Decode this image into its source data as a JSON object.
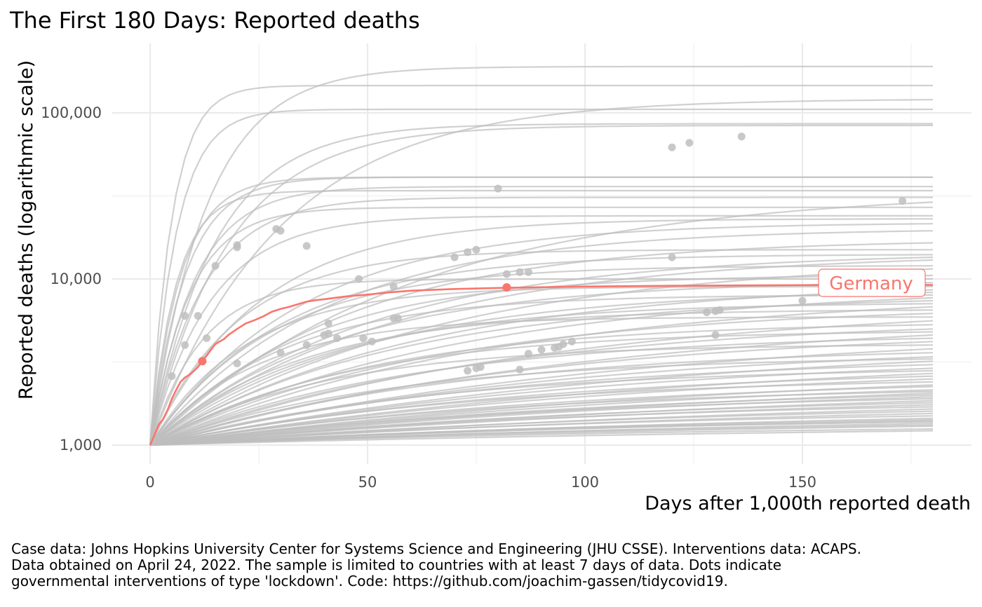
{
  "chart_data": {
    "type": "line",
    "title": "The First 180 Days: Reported deaths",
    "xlabel": "Days after 1,000th reported death",
    "ylabel": "Reported deaths (logarithmic scale)",
    "x_ticks": [
      "0",
      "50",
      "100",
      "150"
    ],
    "y_ticks": [
      "1,000",
      "10,000",
      "100,000"
    ],
    "xlim": [
      0,
      180
    ],
    "ylim": [
      1000,
      200000
    ],
    "y_scale": "log10",
    "grid": true,
    "legend": "none",
    "highlight_color": "#F8766D",
    "background_series_color": "#BEBEBE",
    "highlighted_series": {
      "name": "Germany",
      "x": [
        0,
        1,
        2,
        3,
        4,
        5,
        6,
        7,
        8,
        9,
        10,
        11,
        12,
        13,
        14,
        15,
        16,
        17,
        18,
        20,
        22,
        24,
        26,
        28,
        30,
        32,
        34,
        36,
        38,
        40,
        45,
        50,
        55,
        60,
        70,
        82,
        100,
        120,
        140,
        160,
        180
      ],
      "values": [
        1000,
        1150,
        1330,
        1430,
        1620,
        1900,
        2150,
        2400,
        2550,
        2650,
        2780,
        2950,
        3200,
        3450,
        3750,
        4050,
        4200,
        4350,
        4600,
        5000,
        5400,
        5650,
        5950,
        6350,
        6600,
        6800,
        7050,
        7300,
        7450,
        7550,
        7850,
        8050,
        8300,
        8500,
        8700,
        8850,
        9000,
        9100,
        9150,
        9200,
        9200
      ],
      "lockdown_points": [
        [
          12,
          3200
        ],
        [
          82,
          8900
        ]
      ]
    },
    "other_series": [
      {
        "end": 190000,
        "rate": 13
      },
      {
        "end": 146000,
        "rate": 5
      },
      {
        "end": 120000,
        "rate": 30
      },
      {
        "end": 105000,
        "rate": 6
      },
      {
        "end": 86000,
        "rate": 15
      },
      {
        "end": 84000,
        "rate": 18
      },
      {
        "end": 41000,
        "rate": 8
      },
      {
        "end": 41000,
        "rate": 7
      },
      {
        "end": 36000,
        "rate": 10
      },
      {
        "end": 34000,
        "rate": 6
      },
      {
        "end": 31000,
        "rate": 12
      },
      {
        "end": 29000,
        "rate": 60
      },
      {
        "end": 27000,
        "rate": 9
      },
      {
        "end": 24000,
        "rate": 14
      },
      {
        "end": 23000,
        "rate": 25
      },
      {
        "end": 21500,
        "rate": 35
      },
      {
        "end": 19500,
        "rate": 40
      },
      {
        "end": 16500,
        "rate": 45
      },
      {
        "end": 15000,
        "rate": 20
      },
      {
        "end": 14000,
        "rate": 30
      },
      {
        "end": 13500,
        "rate": 50
      },
      {
        "end": 13000,
        "rate": 55
      },
      {
        "end": 12000,
        "rate": 28
      },
      {
        "end": 11500,
        "rate": 65
      },
      {
        "end": 10500,
        "rate": 35
      },
      {
        "end": 10000,
        "rate": 12
      },
      {
        "end": 9500,
        "rate": 42
      },
      {
        "end": 9000,
        "rate": 22
      },
      {
        "end": 8600,
        "rate": 60
      },
      {
        "end": 8300,
        "rate": 48
      },
      {
        "end": 8000,
        "rate": 30
      },
      {
        "end": 7700,
        "rate": 70
      },
      {
        "end": 7400,
        "rate": 55
      },
      {
        "end": 7100,
        "rate": 40
      },
      {
        "end": 6800,
        "rate": 80
      },
      {
        "end": 6500,
        "rate": 35
      },
      {
        "end": 6200,
        "rate": 65
      },
      {
        "end": 5900,
        "rate": 25
      },
      {
        "end": 5600,
        "rate": 90
      },
      {
        "end": 5300,
        "rate": 50
      },
      {
        "end": 5000,
        "rate": 75
      },
      {
        "end": 4800,
        "rate": 45
      },
      {
        "end": 4600,
        "rate": 100
      },
      {
        "end": 4400,
        "rate": 60
      },
      {
        "end": 4200,
        "rate": 85
      },
      {
        "end": 4000,
        "rate": 40
      },
      {
        "end": 3800,
        "rate": 110
      },
      {
        "end": 3600,
        "rate": 70
      },
      {
        "end": 3400,
        "rate": 95
      },
      {
        "end": 3300,
        "rate": 55
      },
      {
        "end": 3200,
        "rate": 120
      },
      {
        "end": 3050,
        "rate": 80
      },
      {
        "end": 2900,
        "rate": 105
      },
      {
        "end": 2800,
        "rate": 65
      },
      {
        "end": 2700,
        "rate": 130
      },
      {
        "end": 2600,
        "rate": 90
      },
      {
        "end": 2500,
        "rate": 115
      },
      {
        "end": 2400,
        "rate": 75
      },
      {
        "end": 2300,
        "rate": 140
      },
      {
        "end": 2250,
        "rate": 100
      },
      {
        "end": 2150,
        "rate": 125
      },
      {
        "end": 2100,
        "rate": 85
      },
      {
        "end": 2050,
        "rate": 150
      },
      {
        "end": 2000,
        "rate": 110
      },
      {
        "end": 1950,
        "rate": 135
      },
      {
        "end": 1900,
        "rate": 95
      },
      {
        "end": 1850,
        "rate": 160
      },
      {
        "end": 1800,
        "rate": 120
      },
      {
        "end": 1750,
        "rate": 145
      },
      {
        "end": 1700,
        "rate": 105
      },
      {
        "end": 1650,
        "rate": 170
      },
      {
        "end": 1600,
        "rate": 130
      },
      {
        "end": 1550,
        "rate": 155
      },
      {
        "end": 1500,
        "rate": 115
      },
      {
        "end": 1450,
        "rate": 180
      },
      {
        "end": 1420,
        "rate": 140
      },
      {
        "end": 1400,
        "rate": 165
      },
      {
        "end": 1380,
        "rate": 125
      },
      {
        "end": 1350,
        "rate": 190
      },
      {
        "end": 1320,
        "rate": 150
      },
      {
        "end": 1300,
        "rate": 175
      },
      {
        "end": 1250,
        "rate": 135
      },
      {
        "end": 1220,
        "rate": 200
      }
    ],
    "other_lockdown_points": [
      [
        5,
        2600
      ],
      [
        8,
        4000
      ],
      [
        8,
        6000
      ],
      [
        11,
        6000
      ],
      [
        13,
        4400
      ],
      [
        15,
        12000
      ],
      [
        20,
        3100
      ],
      [
        20,
        15500
      ],
      [
        20,
        16000
      ],
      [
        29,
        20000
      ],
      [
        30,
        19500
      ],
      [
        36,
        15800
      ],
      [
        30,
        3600
      ],
      [
        36,
        4000
      ],
      [
        40,
        4600
      ],
      [
        41,
        5400
      ],
      [
        41,
        4700
      ],
      [
        43,
        4400
      ],
      [
        48,
        10000
      ],
      [
        49,
        4400
      ],
      [
        51,
        4200
      ],
      [
        56,
        9000
      ],
      [
        56,
        5800
      ],
      [
        57,
        5800
      ],
      [
        70,
        13500
      ],
      [
        73,
        14500
      ],
      [
        75,
        15000
      ],
      [
        73,
        2800
      ],
      [
        75,
        2900
      ],
      [
        76,
        2950
      ],
      [
        80,
        35000
      ],
      [
        82,
        10700
      ],
      [
        85,
        11000
      ],
      [
        87,
        11000
      ],
      [
        85,
        2850
      ],
      [
        87,
        3550
      ],
      [
        90,
        3750
      ],
      [
        93,
        3850
      ],
      [
        94,
        3900
      ],
      [
        95,
        4050
      ],
      [
        97,
        4200
      ],
      [
        120,
        62000
      ],
      [
        124,
        66000
      ],
      [
        136,
        72000
      ],
      [
        120,
        13500
      ],
      [
        128,
        6300
      ],
      [
        130,
        6400
      ],
      [
        131,
        6500
      ],
      [
        130,
        4600
      ],
      [
        150,
        7400
      ],
      [
        173,
        29500
      ]
    ],
    "label": "Germany",
    "caption": "Case data: Johns Hopkins University Center for Systems Science and Engineering (JHU CSSE). Interventions data: ACAPS.\nData obtained on April 24, 2022. The sample is limited to countries with at least 7 days of data. Dots indicate\ngovernmental interventions of type 'lockdown'. Code: https://github.com/joachim-gassen/tidycovid19."
  }
}
